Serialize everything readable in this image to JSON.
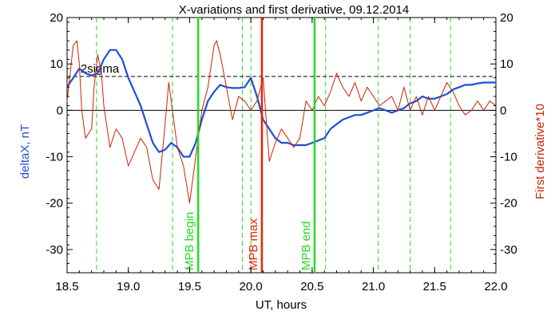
{
  "chart_data": {
    "type": "line",
    "title": "X-variations and first derivative, 09.12.2014",
    "xlabel": "UT, hours",
    "ylabel_left": "deltaX, nT",
    "ylabel_right": "First derivative*10",
    "xlim": [
      18.5,
      22.0
    ],
    "ylim": [
      -35,
      20
    ],
    "x_ticks": [
      18.5,
      19.0,
      19.5,
      20.0,
      20.5,
      21.0,
      21.5,
      22.0
    ],
    "x_tick_labels": [
      "18.5",
      "19.0",
      "19.5",
      "20.0",
      "20.5",
      "21.0",
      "21.5",
      "22.0"
    ],
    "y_ticks": [
      -30,
      -20,
      -10,
      0,
      10,
      20
    ],
    "y_tick_labels": [
      "-30",
      "-20",
      "-10",
      "0",
      "10",
      "20"
    ],
    "colors": {
      "deltaX": "#1f4fd6",
      "derivative": "#cc2200",
      "green": "#22dd22",
      "red": "#ee2200",
      "axis": "#000000"
    },
    "sigma_line": {
      "y": 7.3,
      "label": "2sigma"
    },
    "zero_line": 0,
    "dashed_green_x": [
      18.74,
      19.36,
      19.93,
      20.0,
      20.61,
      21.04,
      21.3,
      21.63
    ],
    "vertical_markers": [
      {
        "x": 19.57,
        "label": "MPB begin",
        "color": "#22dd22"
      },
      {
        "x": 20.09,
        "label": "MPB max",
        "color": "#ee2200"
      },
      {
        "x": 20.52,
        "label": "MPB end",
        "color": "#22dd22"
      }
    ],
    "series": [
      {
        "id": "deltaX",
        "color": "#1f4fd6",
        "x": [
          18.5,
          18.55,
          18.6,
          18.65,
          18.7,
          18.75,
          18.8,
          18.85,
          18.9,
          18.95,
          19.0,
          19.05,
          19.1,
          19.15,
          19.2,
          19.25,
          19.3,
          19.35,
          19.4,
          19.45,
          19.5,
          19.55,
          19.6,
          19.65,
          19.7,
          19.75,
          19.8,
          19.85,
          19.9,
          19.95,
          20.0,
          20.05,
          20.1,
          20.15,
          20.2,
          20.25,
          20.3,
          20.35,
          20.4,
          20.45,
          20.5,
          20.55,
          20.6,
          20.65,
          20.7,
          20.75,
          20.8,
          20.85,
          20.9,
          20.95,
          21.0,
          21.05,
          21.1,
          21.15,
          21.2,
          21.25,
          21.3,
          21.35,
          21.4,
          21.45,
          21.5,
          21.55,
          21.6,
          21.65,
          21.7,
          21.75,
          21.8,
          21.85,
          21.9,
          21.95,
          22.0
        ],
        "y": [
          5,
          7,
          9,
          8,
          7.5,
          8,
          11,
          13,
          13,
          11,
          7,
          4,
          1,
          -3,
          -7,
          -9,
          -8.5,
          -7,
          -8,
          -10,
          -10,
          -7,
          -2,
          2,
          4,
          5.5,
          5,
          4.8,
          4.8,
          5,
          7,
          3,
          -2,
          -4,
          -6,
          -7,
          -7,
          -7.5,
          -7.5,
          -7.5,
          -7,
          -6.5,
          -6,
          -4,
          -3,
          -2,
          -1.5,
          -1,
          -1,
          -0.5,
          0,
          0.5,
          0,
          -0.5,
          0,
          0.5,
          1.5,
          2,
          3,
          2.5,
          2.5,
          3,
          3.5,
          4.5,
          5,
          5.5,
          5.5,
          5.8,
          6,
          6,
          6
        ]
      },
      {
        "id": "derivative",
        "color": "#cc2200",
        "x": [
          18.5,
          18.55,
          18.58,
          18.6,
          18.62,
          18.65,
          18.7,
          18.72,
          18.75,
          18.78,
          18.8,
          18.85,
          18.9,
          18.95,
          19.0,
          19.05,
          19.1,
          19.15,
          19.2,
          19.25,
          19.3,
          19.33,
          19.36,
          19.4,
          19.45,
          19.5,
          19.55,
          19.6,
          19.65,
          19.7,
          19.72,
          19.75,
          19.8,
          19.85,
          19.9,
          19.95,
          20.0,
          20.05,
          20.1,
          20.15,
          20.2,
          20.25,
          20.3,
          20.35,
          20.4,
          20.45,
          20.5,
          20.55,
          20.6,
          20.65,
          20.7,
          20.75,
          20.8,
          20.85,
          20.9,
          20.95,
          21.0,
          21.05,
          21.1,
          21.15,
          21.2,
          21.25,
          21.3,
          21.35,
          21.4,
          21.45,
          21.5,
          21.55,
          21.6,
          21.65,
          21.7,
          21.75,
          21.8,
          21.85,
          21.9,
          21.95,
          22.0
        ],
        "y": [
          2,
          14,
          15,
          10,
          0,
          -6,
          -4,
          5,
          12,
          8,
          1,
          -8,
          -4,
          -6,
          -12,
          -9,
          -6,
          -8,
          -15,
          -17,
          -3,
          6,
          0,
          -8,
          -12,
          -20,
          -10,
          0,
          5,
          14,
          15,
          12,
          5,
          -2,
          3,
          2,
          0,
          2,
          7,
          -11,
          -7,
          -4,
          -6,
          -8,
          -6,
          2,
          0,
          3,
          1,
          4,
          8,
          5,
          3,
          6,
          2,
          5,
          3,
          1,
          2,
          3,
          0,
          5,
          0,
          3,
          -1,
          3,
          0,
          3,
          6,
          4,
          1,
          -1,
          0,
          2,
          0,
          2,
          1
        ]
      }
    ]
  }
}
